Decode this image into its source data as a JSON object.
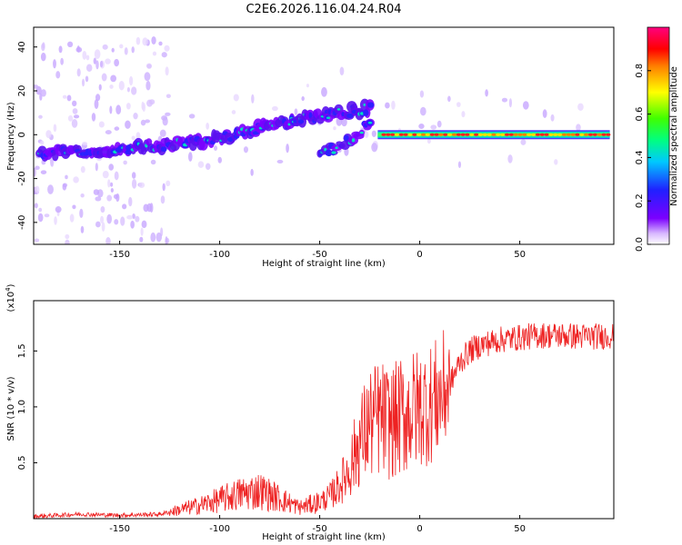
{
  "title": "C2E6.2026.116.04.24.R04",
  "chart_data": [
    {
      "type": "heatmap",
      "xlabel": "Height of straight line (km)",
      "ylabel": "Frequency (Hz)",
      "xlim": [
        -193,
        97
      ],
      "ylim": [
        -50,
        49
      ],
      "xticks": [
        -150,
        -100,
        -50,
        0,
        50
      ],
      "yticks": [
        -40,
        -20,
        0,
        20,
        40
      ],
      "colorbar": {
        "label": "Normalized spectral amplitude",
        "range": [
          0,
          1
        ],
        "ticks": [
          "0.0",
          "0.2",
          "0.4",
          "0.6",
          "0.8"
        ],
        "colors": [
          "#ffffff",
          "#7b00ff",
          "#2020ff",
          "#00c8ff",
          "#00ff80",
          "#40ff00",
          "#ffff00",
          "#ff8000",
          "#ff0000",
          "#ff0080"
        ]
      },
      "ridge": [
        {
          "x": -190,
          "f": -8
        },
        {
          "x": -160,
          "f": -7
        },
        {
          "x": -130,
          "f": -5
        },
        {
          "x": -100,
          "f": -2
        },
        {
          "x": -80,
          "f": 3
        },
        {
          "x": -60,
          "f": 7
        },
        {
          "x": -40,
          "f": 10
        },
        {
          "x": -25,
          "f": 12
        },
        {
          "x": -20,
          "f": 0
        },
        {
          "x": 0,
          "f": 0
        },
        {
          "x": 50,
          "f": 0
        },
        {
          "x": 95,
          "f": 0
        }
      ],
      "secondary_branch": [
        {
          "x": -50,
          "f": -9
        },
        {
          "x": -40,
          "f": -5
        },
        {
          "x": -30,
          "f": 1
        },
        {
          "x": -23,
          "f": 8
        }
      ]
    },
    {
      "type": "line",
      "xlabel": "Height of straight line (km)",
      "ylabel": "SNR (10 * v/v)",
      "scale_label": "(x10",
      "scale_exp": "4",
      "xlim": [
        -193,
        97
      ],
      "ylim": [
        0,
        1.95
      ],
      "xticks": [
        -150,
        -100,
        -50,
        0,
        50
      ],
      "yticks": [
        "0.5",
        "1.0",
        "1.5"
      ],
      "color": "#ee2222",
      "series": [
        {
          "name": "SNR",
          "x": [
            -193,
            -170,
            -150,
            -130,
            -120,
            -110,
            -100,
            -90,
            -80,
            -70,
            -60,
            -50,
            -45,
            -40,
            -35,
            -30,
            -25,
            -20,
            -15,
            -10,
            -5,
            0,
            5,
            10,
            15,
            20,
            25,
            30,
            40,
            50,
            60,
            70,
            80,
            90,
            97
          ],
          "y": [
            0.02,
            0.04,
            0.03,
            0.04,
            0.08,
            0.12,
            0.17,
            0.22,
            0.25,
            0.18,
            0.1,
            0.15,
            0.2,
            0.3,
            0.45,
            0.7,
            0.85,
            0.9,
            0.85,
            0.9,
            0.95,
            1.0,
            1.02,
            1.1,
            1.2,
            1.4,
            1.5,
            1.55,
            1.6,
            1.62,
            1.64,
            1.64,
            1.63,
            1.63,
            1.64
          ]
        }
      ]
    }
  ]
}
